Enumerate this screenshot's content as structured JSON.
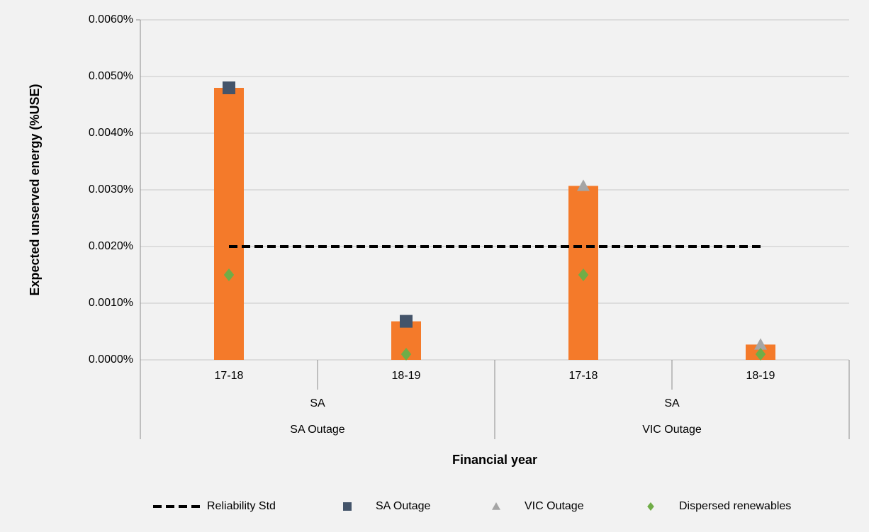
{
  "chart_data": {
    "type": "bar",
    "y_label": "Expected unserved energy (%USE)",
    "x_label": "Financial year",
    "groups": [
      {
        "region": "SA",
        "scenario": "SA Outage",
        "categories": [
          "17-18",
          "18-19"
        ]
      },
      {
        "region": "SA",
        "scenario": "VIC Outage",
        "categories": [
          "17-18",
          "18-19"
        ]
      }
    ],
    "values": [
      0.0048,
      0.00068,
      0.00307,
      0.00027
    ],
    "color": "#f47a2a",
    "series": [
      {
        "name": "Reliability Std",
        "color": "#000000",
        "marker": "dash",
        "values": [
          0.002,
          0.002,
          0.002,
          0.002
        ]
      },
      {
        "name": "SA Outage",
        "color": "#44546a",
        "marker": "square",
        "values": [
          0.0048,
          0.00068,
          null,
          null
        ]
      },
      {
        "name": "VIC Outage",
        "color": "#a5a5a5",
        "marker": "triangle",
        "values": [
          null,
          null,
          0.00307,
          0.00027
        ]
      },
      {
        "name": "Dispersed renewables",
        "color": "#70ad47",
        "marker": "diamond",
        "values": [
          0.0015,
          0.0001,
          0.0015,
          0.0001
        ]
      }
    ],
    "ylim": [
      0,
      0.006
    ],
    "yticks": [
      {
        "value": 0,
        "label": "0.0000%"
      },
      {
        "value": 0.001,
        "label": "0.0010%"
      },
      {
        "value": 0.002,
        "label": "0.0020%"
      },
      {
        "value": 0.003,
        "label": "0.0030%"
      },
      {
        "value": 0.004,
        "label": "0.0040%"
      },
      {
        "value": 0.005,
        "label": "0.0050%"
      },
      {
        "value": 0.006,
        "label": "0.0060%"
      }
    ],
    "grid": true
  }
}
